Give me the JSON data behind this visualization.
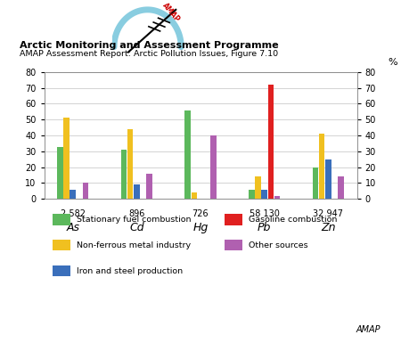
{
  "title1": "Arctic Monitoring and Assessment Programme",
  "title2": "AMAP Assessment Report: Arctic Pollution Issues, Figure 7.10",
  "groups": [
    "As",
    "Cd",
    "Hg",
    "Pb",
    "Zn"
  ],
  "subtitles": [
    "2 582",
    "896",
    "726",
    "58 130",
    "32 947"
  ],
  "categories": [
    "Stationary fuel combustion",
    "Non-ferrous metal industry",
    "Iron and steel production",
    "Gasoline combustion",
    "Other sources"
  ],
  "colors": [
    "#5cb85c",
    "#f0c020",
    "#3a6fbb",
    "#e02020",
    "#b060b0"
  ],
  "data": {
    "As": [
      33,
      51,
      6,
      0,
      10
    ],
    "Cd": [
      31,
      44,
      9,
      0,
      16
    ],
    "Hg": [
      56,
      4,
      0,
      0,
      40
    ],
    "Pb": [
      6,
      14,
      6,
      72,
      2
    ],
    "Zn": [
      20,
      41,
      25,
      0,
      14
    ]
  },
  "ylim": [
    0,
    80
  ],
  "yticks": [
    0,
    10,
    20,
    30,
    40,
    50,
    60,
    70,
    80
  ],
  "legend_items": [
    {
      "label": "Stationary fuel combustion",
      "color": "#5cb85c"
    },
    {
      "label": "Non-ferrous metal industry",
      "color": "#f0c020"
    },
    {
      "label": "Iron and steel production",
      "color": "#3a6fbb"
    },
    {
      "label": "Gasoline combustion",
      "color": "#e02020"
    },
    {
      "label": "Other sources",
      "color": "#b060b0"
    }
  ],
  "amap_label": "AMAP"
}
